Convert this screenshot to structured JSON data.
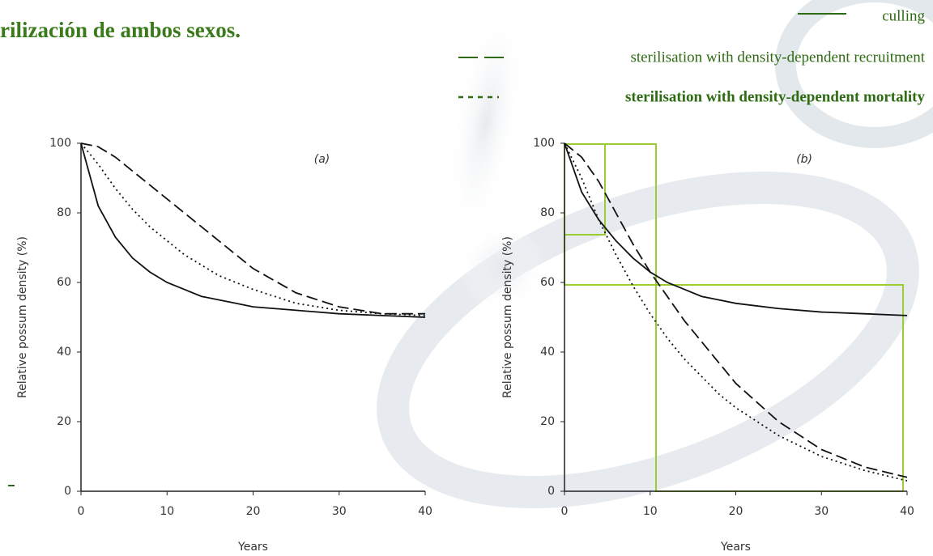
{
  "title": "rilización de ambos sexos.",
  "chart_data": [
    {
      "type": "line",
      "annotation": "(a)",
      "xlabel": "Years",
      "ylabel": "Relative possum density (%)",
      "x": [
        0,
        2,
        4,
        6,
        8,
        10,
        12,
        14,
        16,
        18,
        20,
        25,
        30,
        35,
        40
      ],
      "xlim": [
        0,
        40
      ],
      "xticks": [
        0,
        10,
        20,
        30,
        40
      ],
      "ylim": [
        0,
        100
      ],
      "yticks": [
        0,
        20,
        40,
        60,
        80,
        100
      ],
      "series": [
        {
          "name": "culling",
          "color": "#111111",
          "style": "solid",
          "values": [
            100,
            82,
            73,
            67,
            63,
            60,
            58,
            56,
            55,
            54,
            53,
            52,
            51,
            50.5,
            50
          ]
        },
        {
          "name": "sterilisation with density-dependent recruitment",
          "color": "#111111",
          "style": "dashed",
          "values": [
            100,
            99,
            96,
            92,
            88,
            84,
            80,
            76,
            72,
            68,
            64,
            57,
            53,
            51,
            51
          ]
        },
        {
          "name": "sterilisation with density-dependent mortality",
          "color": "#111111",
          "style": "dotted",
          "values": [
            100,
            94,
            87,
            81,
            76,
            72,
            68,
            65,
            62,
            60,
            58,
            54,
            52,
            51,
            50.5
          ]
        }
      ]
    },
    {
      "type": "line",
      "annotation": "(b)",
      "xlabel": "Years",
      "ylabel": "Relative possum density (%)",
      "x": [
        0,
        2,
        4,
        6,
        8,
        10,
        12,
        14,
        16,
        18,
        20,
        25,
        30,
        35,
        40
      ],
      "xlim": [
        0,
        40
      ],
      "xticks": [
        0,
        10,
        20,
        30,
        40
      ],
      "ylim": [
        0,
        100
      ],
      "yticks": [
        0,
        20,
        40,
        60,
        80,
        100
      ],
      "series": [
        {
          "color": "#111111",
          "style": "solid",
          "values": [
            100,
            86,
            78,
            72,
            67,
            63,
            60,
            58,
            56,
            55,
            54,
            52.5,
            51.5,
            51,
            50.5
          ]
        },
        {
          "color": "#111111",
          "style": "dashed",
          "values": [
            100,
            96,
            89,
            80,
            71,
            63,
            56,
            49,
            43,
            37,
            31,
            20,
            12,
            7,
            4
          ]
        },
        {
          "color": "#111111",
          "style": "dotted",
          "values": [
            100,
            90,
            78,
            68,
            59,
            51,
            44,
            38,
            33,
            28,
            24,
            16,
            10,
            6,
            3
          ]
        }
      ]
    }
  ]
}
